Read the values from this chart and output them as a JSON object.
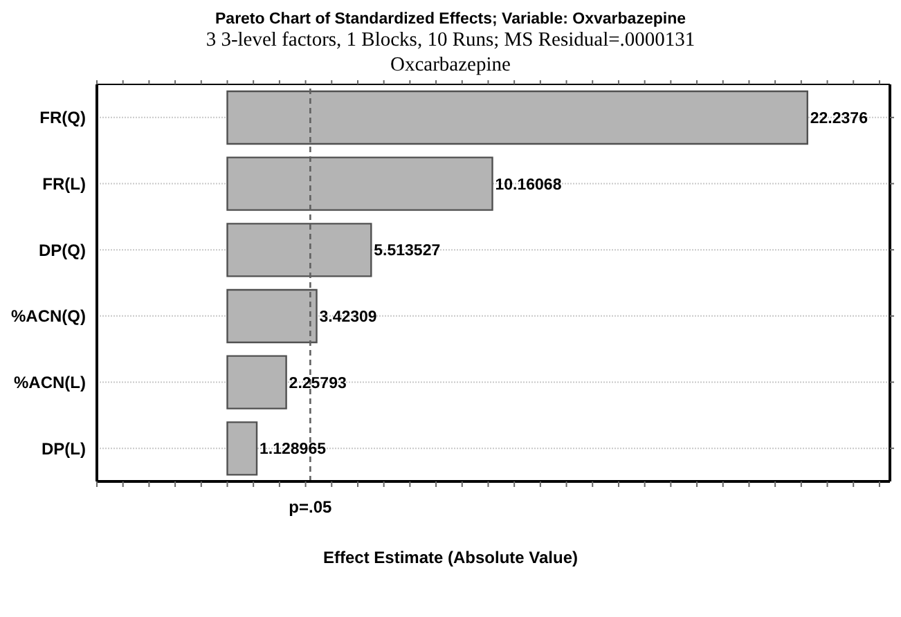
{
  "chart_data": {
    "type": "bar",
    "orientation": "horizontal",
    "title": "Pareto Chart of Standardized Effects; Variable: Oxvarbazepine",
    "subtitle": "3 3-level factors, 1 Blocks, 10 Runs; MS Residual=.0000131\nOxcarbazepine",
    "xlabel": "Effect Estimate (Absolute Value)",
    "categories": [
      "FR(Q)",
      "FR(L)",
      "DP(Q)",
      "%ACN(Q)",
      "%ACN(L)",
      "DP(L)"
    ],
    "values": [
      22.2376,
      10.16068,
      5.513527,
      3.42309,
      2.25793,
      1.128965
    ],
    "color": "#b4b4b4",
    "data_labels": true,
    "xlim": [
      -5,
      25.4
    ],
    "xticks": [
      {
        "value": -5,
        "label": null
      },
      {
        "value": -4,
        "label": null
      },
      {
        "value": -3,
        "label": null
      },
      {
        "value": -2,
        "label": null
      },
      {
        "value": -1,
        "label": null
      },
      {
        "value": 0,
        "label": null
      },
      {
        "value": 1,
        "label": null
      },
      {
        "value": 2,
        "label": null
      },
      {
        "value": 3,
        "label": null
      },
      {
        "value": 4,
        "label": null
      },
      {
        "value": 5,
        "label": null
      },
      {
        "value": 6,
        "label": null
      },
      {
        "value": 7,
        "label": null
      },
      {
        "value": 8,
        "label": null
      },
      {
        "value": 9,
        "label": null
      },
      {
        "value": 10,
        "label": null
      },
      {
        "value": 11,
        "label": null
      },
      {
        "value": 12,
        "label": null
      },
      {
        "value": 13,
        "label": null
      },
      {
        "value": 14,
        "label": null
      },
      {
        "value": 15,
        "label": null
      },
      {
        "value": 16,
        "label": null
      },
      {
        "value": 17,
        "label": null
      },
      {
        "value": 18,
        "label": null
      },
      {
        "value": 19,
        "label": null
      },
      {
        "value": 20,
        "label": null
      },
      {
        "value": 21,
        "label": null
      },
      {
        "value": 22,
        "label": null
      },
      {
        "value": 23,
        "label": null
      },
      {
        "value": 24,
        "label": null
      },
      {
        "value": 25,
        "label": null
      }
    ],
    "tick_labels": "y",
    "grid": "y",
    "ref_lines": [
      {
        "axis": "x",
        "value": 3.18,
        "label": "p=.05",
        "color": "#606060",
        "line_style": "dashed"
      }
    ]
  }
}
